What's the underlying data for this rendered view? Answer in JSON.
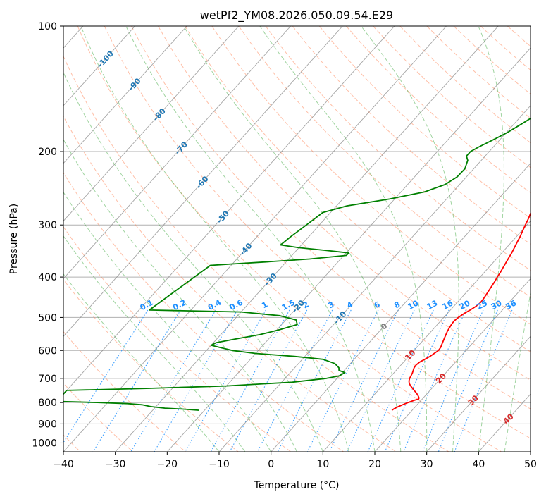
{
  "chart_data": {
    "type": "line",
    "title": "wetPf2_YM08.2026.050.09.54.E29",
    "xlabel": "Temperature (°C)",
    "ylabel": "Pressure (hPa)",
    "xlim": [
      -40,
      50
    ],
    "ylim": [
      1050,
      100
    ],
    "y_scale": "log",
    "x_ticks": [
      -40,
      -30,
      -20,
      -10,
      0,
      10,
      20,
      30,
      40,
      50
    ],
    "y_ticks": [
      100,
      200,
      300,
      400,
      500,
      600,
      700,
      800,
      900,
      1000
    ],
    "grid": true,
    "skew": "skew-T log-P diagram",
    "colors": {
      "temperature": "#ff0000",
      "dewpoint": "#008000",
      "isotherm": "#7f7f7f",
      "dry_adiabat": "#ff7f50",
      "moist_adiabat": "#2ca02c",
      "mixing_ratio": "#1e90ff",
      "label_blue": "#1f77b4",
      "label_red": "#d62728"
    },
    "series": [
      {
        "points": [
          [
            1.3,
            100
          ],
          [
            0.8,
            103
          ],
          [
            0.5,
            107
          ],
          [
            1.2,
            112
          ],
          [
            1.5,
            120
          ],
          [
            1.8,
            130
          ],
          [
            1.4,
            140
          ],
          [
            1.2,
            150
          ],
          [
            1.3,
            160
          ],
          [
            1.8,
            170
          ],
          [
            2.3,
            180
          ],
          [
            3.0,
            190
          ],
          [
            3.6,
            200
          ],
          [
            4.3,
            210
          ],
          [
            5.0,
            220
          ],
          [
            5.6,
            230
          ],
          [
            6.1,
            240
          ],
          [
            6.7,
            250
          ],
          [
            7.3,
            260
          ],
          [
            8.0,
            270
          ],
          [
            8.6,
            280
          ],
          [
            9.2,
            290
          ],
          [
            9.7,
            300
          ],
          [
            10.2,
            310
          ],
          [
            10.7,
            320
          ],
          [
            11.1,
            330
          ],
          [
            11.5,
            340
          ],
          [
            11.9,
            350
          ],
          [
            12.2,
            360
          ],
          [
            12.5,
            370
          ],
          [
            12.8,
            380
          ],
          [
            13.1,
            390
          ],
          [
            13.3,
            400
          ],
          [
            13.6,
            410
          ],
          [
            13.8,
            420
          ],
          [
            14.0,
            430
          ],
          [
            14.2,
            440
          ],
          [
            14.4,
            450
          ],
          [
            14.5,
            460
          ],
          [
            14.3,
            470
          ],
          [
            13.8,
            480
          ],
          [
            13.2,
            490
          ],
          [
            12.8,
            500
          ],
          [
            12.6,
            510
          ],
          [
            12.7,
            520
          ],
          [
            12.9,
            530
          ],
          [
            13.1,
            540
          ],
          [
            13.4,
            550
          ],
          [
            13.7,
            560
          ],
          [
            14.0,
            570
          ],
          [
            14.3,
            580
          ],
          [
            14.6,
            590
          ],
          [
            14.7,
            600
          ],
          [
            14.4,
            610
          ],
          [
            14.1,
            620
          ],
          [
            13.6,
            630
          ],
          [
            13.1,
            640
          ],
          [
            12.9,
            650
          ],
          [
            13.0,
            660
          ],
          [
            13.3,
            670
          ],
          [
            13.6,
            680
          ],
          [
            13.8,
            690
          ],
          [
            14.0,
            700
          ],
          [
            14.3,
            710
          ],
          [
            14.8,
            720
          ],
          [
            15.5,
            730
          ],
          [
            16.3,
            740
          ],
          [
            17.1,
            750
          ],
          [
            17.9,
            760
          ],
          [
            18.6,
            770
          ],
          [
            19.2,
            780
          ],
          [
            19.3,
            785
          ],
          [
            18.7,
            790
          ],
          [
            17.9,
            800
          ],
          [
            17.2,
            810
          ],
          [
            16.6,
            820
          ],
          [
            16.2,
            830
          ],
          [
            16.1,
            835
          ]
        ]
      },
      {
        "points": [
          [
            0.2,
            100
          ],
          [
            -0.4,
            103
          ],
          [
            -1.5,
            105
          ],
          [
            -3.0,
            110
          ],
          [
            -4.0,
            115
          ],
          [
            -4.5,
            120
          ],
          [
            -4.6,
            130
          ],
          [
            -4.8,
            140
          ],
          [
            -5.5,
            150
          ],
          [
            -6.8,
            160
          ],
          [
            -8.3,
            170
          ],
          [
            -9.8,
            180
          ],
          [
            -11.2,
            187
          ],
          [
            -12.8,
            195
          ],
          [
            -13.6,
            200
          ],
          [
            -13.6,
            205
          ],
          [
            -12.6,
            210
          ],
          [
            -11.7,
            220
          ],
          [
            -11.8,
            230
          ],
          [
            -12.8,
            240
          ],
          [
            -15.5,
            250
          ],
          [
            -21.0,
            260
          ],
          [
            -28.0,
            270
          ],
          [
            -31.5,
            280
          ],
          [
            -32.5,
            300
          ],
          [
            -33.5,
            320
          ],
          [
            -34.0,
            335
          ],
          [
            -30.0,
            340
          ],
          [
            -24.5,
            345
          ],
          [
            -19.5,
            350
          ],
          [
            -19.5,
            355
          ],
          [
            -26.0,
            362
          ],
          [
            -34.0,
            368
          ],
          [
            -40.0,
            372
          ],
          [
            -44.0,
            375
          ],
          [
            -48.0,
            480
          ],
          [
            -30.0,
            485
          ],
          [
            -22.0,
            495
          ],
          [
            -18.0,
            507
          ],
          [
            -17.0,
            520
          ],
          [
            -19.5,
            535
          ],
          [
            -22.5,
            550
          ],
          [
            -26.0,
            562
          ],
          [
            -29.5,
            575
          ],
          [
            -30.0,
            583
          ],
          [
            -28.0,
            590
          ],
          [
            -25.0,
            600
          ],
          [
            -20.0,
            610
          ],
          [
            -12.0,
            620
          ],
          [
            -6.0,
            630
          ],
          [
            -3.0,
            645
          ],
          [
            -1.5,
            660
          ],
          [
            -1.0,
            670
          ],
          [
            0.5,
            678
          ],
          [
            0.0,
            690
          ],
          [
            -2.0,
            700
          ],
          [
            -8.0,
            715
          ],
          [
            -20.0,
            730
          ],
          [
            -35.0,
            740
          ],
          [
            -50.0,
            748
          ],
          [
            -50.0,
            795
          ],
          [
            -42.0,
            800
          ],
          [
            -36.0,
            805
          ],
          [
            -33.0,
            810
          ],
          [
            -31.0,
            818
          ],
          [
            -28.0,
            825
          ],
          [
            -24.0,
            830
          ],
          [
            -21.0,
            835
          ]
        ]
      }
    ],
    "isotherm_labels": [
      "-100",
      "-90",
      "-80",
      "-70",
      "-60",
      "-50",
      "-40",
      "-30",
      "-20",
      "-10"
    ],
    "isotherm_label_points": [
      [
        -100,
        120
      ],
      [
        -90,
        138
      ],
      [
        -80,
        163
      ],
      [
        -70,
        196
      ],
      [
        -60,
        237
      ],
      [
        -50,
        287
      ],
      [
        -40,
        343
      ],
      [
        -30,
        405
      ],
      [
        -20,
        470
      ],
      [
        -10,
        500
      ]
    ],
    "mixing_ratio_labels": [
      "0.1",
      "0.2",
      "0.4",
      "0.6",
      "1",
      "1.5",
      "2",
      "3",
      "4",
      "6",
      "8",
      "10",
      "13",
      "16",
      "20",
      "25",
      "30",
      "36"
    ],
    "mixing_ratio_values": [
      0.1,
      0.2,
      0.4,
      0.6,
      1,
      1.5,
      2,
      3,
      4,
      6,
      8,
      10,
      13,
      16,
      20,
      25,
      30,
      36
    ],
    "moist_labels": [
      "0",
      "10",
      "20",
      "30",
      "40"
    ],
    "moist_label_points": [
      [
        0,
        525
      ],
      [
        10,
        615
      ],
      [
        20,
        700
      ],
      [
        30,
        790
      ],
      [
        40,
        875
      ]
    ]
  }
}
